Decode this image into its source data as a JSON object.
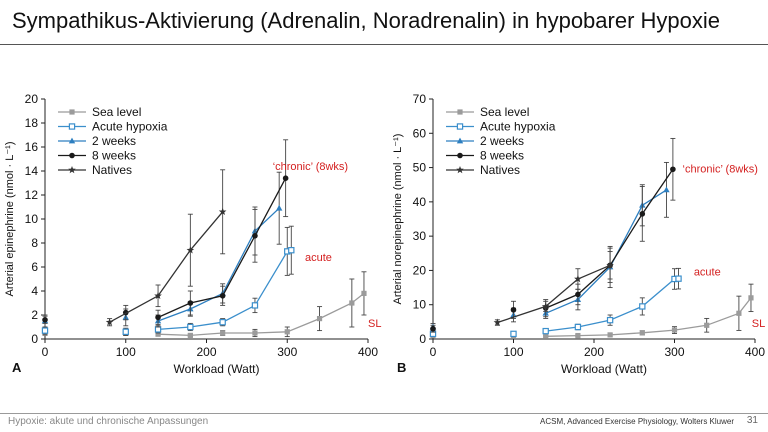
{
  "slide": {
    "title": "Sympathikus-Aktivierung (Adrenalin, Noradrenalin) in hypobarer Hypoxie",
    "footer_left": "Hypoxie: akute und chronische Anpassungen",
    "footer_source": "ACSM, Advanced Exercise Physiology, Wolters Kluwer",
    "page_number": "31"
  },
  "colors": {
    "sea_level": "#9b9b9b",
    "acute": "#3b8fcc",
    "two_weeks": "#2d7fc0",
    "eight_weeks": "#1a1a1a",
    "natives": "#333333",
    "annotation": "#d42020"
  },
  "chart_data": [
    {
      "type": "line",
      "panel_label": "A",
      "xlabel": "Workload (Watt)",
      "ylabel": "Arterial epinephrine (nmol · L⁻¹)",
      "xlim": [
        0,
        400
      ],
      "ylim": [
        0,
        20
      ],
      "xticks": [
        0,
        100,
        200,
        300,
        400
      ],
      "yticks": [
        0,
        2,
        4,
        6,
        8,
        10,
        12,
        14,
        16,
        18,
        20
      ],
      "grid": false,
      "legend_position": "top-left",
      "series": [
        {
          "name": "Sea level",
          "marker": "square-filled",
          "x": [
            0,
            100,
            140,
            180,
            220,
            260,
            300,
            340,
            380,
            395
          ],
          "y": [
            0.5,
            0.5,
            0.4,
            0.3,
            0.5,
            0.5,
            0.6,
            1.7,
            3.0,
            3.8
          ],
          "err": [
            0.2,
            0.2,
            0.1,
            0.1,
            0.2,
            0.3,
            0.4,
            1.0,
            2.0,
            1.8
          ]
        },
        {
          "name": "Acute hypoxia",
          "marker": "square-open",
          "x": [
            0,
            100,
            140,
            180,
            220,
            260,
            300,
            305
          ],
          "y": [
            0.7,
            0.6,
            0.8,
            1.0,
            1.4,
            2.8,
            7.3,
            7.4
          ],
          "err": [
            0.3,
            0.3,
            0.3,
            0.3,
            0.3,
            0.6,
            2.0,
            2.0
          ]
        },
        {
          "name": "2 weeks",
          "marker": "triangle-filled",
          "x": [
            0,
            100,
            140,
            180,
            220,
            260,
            290
          ],
          "y": [
            1.5,
            1.8,
            1.5,
            2.5,
            3.8,
            9.0,
            10.9
          ],
          "err": [
            0.5,
            0.7,
            0.5,
            0.6,
            0.8,
            2.0,
            3.0
          ]
        },
        {
          "name": "8 weeks",
          "marker": "circle-filled",
          "x": [
            0,
            100,
            140,
            180,
            220,
            260,
            298
          ],
          "y": [
            1.6,
            2.2,
            1.8,
            3.0,
            3.6,
            8.6,
            13.4
          ],
          "err": [
            0.3,
            0.6,
            0.6,
            1.0,
            0.8,
            2.2,
            3.2
          ]
        },
        {
          "name": "Natives",
          "marker": "star",
          "x": [
            80,
            140,
            180,
            220
          ],
          "y": [
            1.4,
            3.6,
            7.4,
            10.6
          ],
          "err": [
            0.3,
            0.9,
            3.0,
            3.5
          ]
        }
      ],
      "annotations": [
        {
          "text": "‘chronic’ (8wks)",
          "x": 282,
          "y": 14.1
        },
        {
          "text": "acute",
          "x": 322,
          "y": 6.5
        },
        {
          "text": "SL",
          "x": 400,
          "y": 1.0
        }
      ]
    },
    {
      "type": "line",
      "panel_label": "B",
      "xlabel": "Workload (Watt)",
      "ylabel": "Arterial norepinephrine (nmol · L⁻¹)",
      "xlim": [
        0,
        400
      ],
      "ylim": [
        0,
        70
      ],
      "xticks": [
        0,
        100,
        200,
        300,
        400
      ],
      "yticks": [
        0,
        10,
        20,
        30,
        40,
        50,
        60,
        70
      ],
      "grid": false,
      "legend_position": "top-left",
      "series": [
        {
          "name": "Sea level",
          "marker": "square-filled",
          "x": [
            0,
            100,
            140,
            180,
            220,
            260,
            300,
            340,
            380,
            395
          ],
          "y": [
            1.0,
            0.8,
            0.8,
            1.0,
            1.2,
            1.8,
            2.6,
            4.0,
            7.5,
            12.0
          ],
          "err": [
            0.3,
            0.3,
            0.2,
            0.3,
            0.4,
            0.6,
            1.0,
            2.0,
            5.0,
            4.0
          ]
        },
        {
          "name": "Acute hypoxia",
          "marker": "square-open",
          "x": [
            0,
            100,
            140,
            180,
            220,
            260,
            300,
            305
          ],
          "y": [
            1.5,
            1.5,
            2.3,
            3.5,
            5.5,
            9.5,
            17.5,
            17.6
          ],
          "err": [
            0.5,
            0.5,
            0.5,
            0.8,
            1.5,
            2.5,
            3.0,
            3.0
          ]
        },
        {
          "name": "2 weeks",
          "marker": "triangle-filled",
          "x": [
            0,
            100,
            140,
            180,
            220,
            260,
            290
          ],
          "y": [
            3.5,
            7.0,
            7.5,
            11.5,
            21.0,
            39.0,
            43.5
          ],
          "err": [
            1.0,
            2.0,
            1.5,
            3.0,
            6.0,
            6.0,
            8.0
          ]
        },
        {
          "name": "8 weeks",
          "marker": "circle-filled",
          "x": [
            0,
            100,
            140,
            180,
            220,
            260,
            298
          ],
          "y": [
            3.0,
            8.5,
            9.0,
            13.0,
            21.5,
            36.5,
            49.5
          ],
          "err": [
            1.0,
            2.5,
            2.5,
            3.0,
            5.0,
            8.0,
            9.0
          ]
        },
        {
          "name": "Natives",
          "marker": "star",
          "x": [
            80,
            140,
            180,
            220
          ],
          "y": [
            4.8,
            9.5,
            17.5,
            21.5
          ],
          "err": [
            0.8,
            1.5,
            3.0,
            4.0
          ]
        }
      ],
      "annotations": [
        {
          "text": "‘chronic’ (8wks)",
          "x": 310,
          "y": 48.5
        },
        {
          "text": "acute",
          "x": 324,
          "y": 18.5
        },
        {
          "text": "SL",
          "x": 396,
          "y": 3.5
        }
      ]
    }
  ]
}
